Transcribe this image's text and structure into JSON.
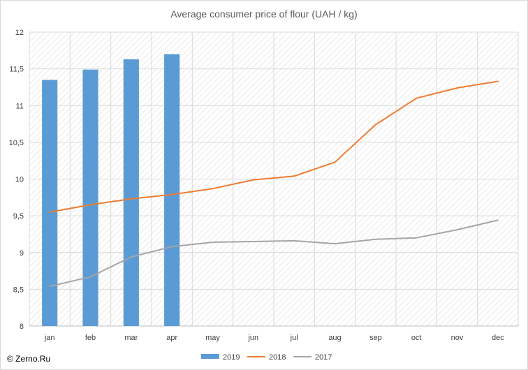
{
  "chart_data": {
    "type": "bar+line",
    "title": "Average consumer price of flour (UAH / kg)",
    "xlabel": "",
    "ylabel": "",
    "categories": [
      "jan",
      "feb",
      "mar",
      "apr",
      "may",
      "jun",
      "jul",
      "aug",
      "sep",
      "oct",
      "nov",
      "dec"
    ],
    "ylim": [
      8,
      12
    ],
    "yticks": [
      "8",
      "8,5",
      "9",
      "9,5",
      "10",
      "10,5",
      "11",
      "11,5",
      "12"
    ],
    "ytick_values": [
      8,
      8.5,
      9,
      9.5,
      10,
      10.5,
      11,
      11.5,
      12
    ],
    "grid": true,
    "legend_position": "bottom",
    "series": [
      {
        "name": "2019",
        "type": "bar",
        "color": "#5b9bd5",
        "values": [
          11.35,
          11.49,
          11.63,
          11.7,
          null,
          null,
          null,
          null,
          null,
          null,
          null,
          null
        ]
      },
      {
        "name": "2018",
        "type": "line",
        "color": "#ed7d31",
        "values": [
          9.55,
          9.65,
          9.73,
          9.79,
          9.87,
          9.99,
          10.04,
          10.23,
          10.74,
          11.1,
          11.24,
          11.33
        ]
      },
      {
        "name": "2017",
        "type": "line",
        "color": "#a5a5a5",
        "values": [
          8.54,
          8.67,
          8.94,
          9.08,
          9.14,
          9.15,
          9.16,
          9.12,
          9.18,
          9.2,
          9.31,
          9.44
        ]
      }
    ]
  },
  "copyright": "© Zerno.Ru"
}
